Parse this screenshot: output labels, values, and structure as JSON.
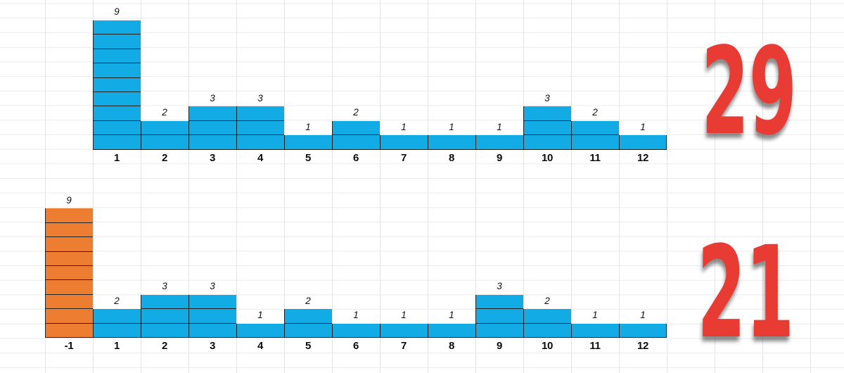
{
  "colors": {
    "bar_blue": "#12abe6",
    "bar_orange": "#ed7d31",
    "block_border": "#232323",
    "total_red": "#e83b33",
    "grid_line": "#e8e8e8"
  },
  "chart_data": [
    {
      "type": "bar",
      "name": "histogram-top",
      "title": "",
      "xlabel": "",
      "ylabel": "",
      "categories": [
        "1",
        "2",
        "3",
        "4",
        "5",
        "6",
        "7",
        "8",
        "9",
        "10",
        "11",
        "12"
      ],
      "values": [
        9,
        2,
        3,
        3,
        1,
        2,
        1,
        1,
        1,
        3,
        2,
        1
      ],
      "data_labels": [
        "9",
        "2",
        "3",
        "3",
        "1",
        "2",
        "1",
        "1",
        "1",
        "3",
        "2",
        "1"
      ],
      "bar_color": "#12abe6",
      "highlight_index": null,
      "highlight_color": null,
      "unit_stacked_blocks": true,
      "ylim": [
        0,
        9
      ],
      "grid": true,
      "legend": "none",
      "total_label": "29"
    },
    {
      "type": "bar",
      "name": "histogram-bottom",
      "title": "",
      "xlabel": "",
      "ylabel": "",
      "categories": [
        "-1",
        "1",
        "2",
        "3",
        "4",
        "5",
        "6",
        "7",
        "8",
        "9",
        "10",
        "11",
        "12"
      ],
      "values": [
        9,
        2,
        3,
        3,
        1,
        2,
        1,
        1,
        1,
        3,
        2,
        1,
        1
      ],
      "data_labels": [
        "9",
        "2",
        "3",
        "3",
        "1",
        "2",
        "1",
        "1",
        "1",
        "3",
        "2",
        "1",
        "1"
      ],
      "bar_color": "#12abe6",
      "highlight_index": 0,
      "highlight_color": "#ed7d31",
      "unit_stacked_blocks": true,
      "ylim": [
        0,
        9
      ],
      "grid": true,
      "legend": "none",
      "total_label": "21"
    }
  ]
}
